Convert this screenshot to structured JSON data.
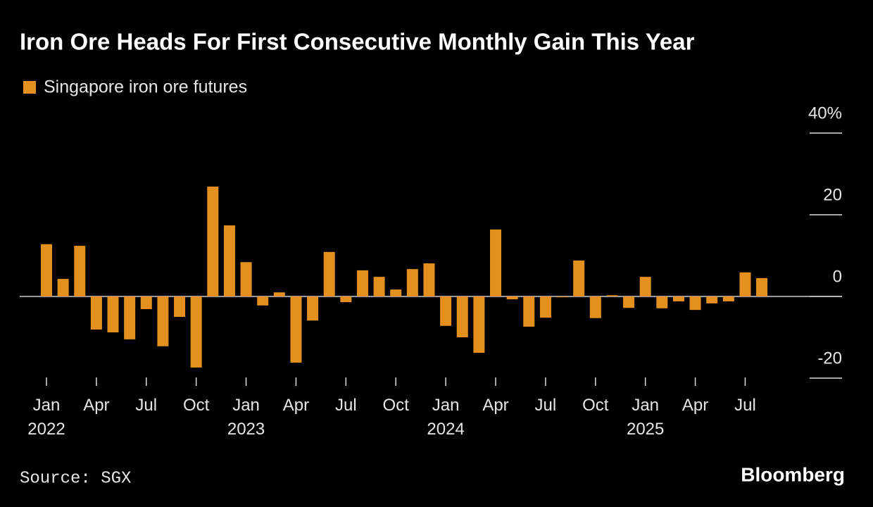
{
  "chart_data": {
    "type": "bar",
    "title": "Iron Ore Heads For First Consecutive Monthly Gain This Year",
    "source": "Source: SGX",
    "brand": "Bloomberg",
    "categories": [
      "Jan 2022",
      null,
      null,
      "Apr",
      null,
      null,
      "Jul",
      null,
      null,
      "Oct",
      null,
      null,
      "Jan 2023",
      null,
      null,
      "Apr",
      null,
      null,
      "Jul",
      null,
      null,
      "Oct",
      null,
      null,
      "Jan 2024",
      null,
      null,
      "Apr",
      null,
      null,
      "Jul",
      null,
      null,
      "Oct",
      null,
      null,
      "Jan 2025",
      null,
      null,
      "Apr",
      null,
      null,
      "Jul",
      null
    ],
    "series": [
      {
        "name": "Singapore iron ore futures",
        "color": "#e3901f",
        "values": [
          12.8,
          4.3,
          12.4,
          -8.1,
          -8.8,
          -10.5,
          -3.1,
          -12.2,
          -5.0,
          -17.4,
          26.9,
          17.4,
          8.4,
          -2.2,
          1.0,
          -16.2,
          -5.9,
          10.9,
          -1.4,
          6.4,
          4.8,
          1.7,
          6.7,
          8.1,
          -7.2,
          -10.0,
          -13.8,
          16.4,
          -0.7,
          -7.4,
          -5.2,
          -0.2,
          8.8,
          -5.3,
          0.3,
          -2.8,
          4.8,
          -2.9,
          -1.2,
          -3.3,
          -1.7,
          -1.2,
          5.9,
          4.5
        ]
      }
    ],
    "ylim": [
      -20,
      40
    ],
    "yticks": [
      -20,
      0,
      20,
      {
        "value": 40,
        "label": "40%"
      }
    ],
    "legend": "top-left"
  }
}
